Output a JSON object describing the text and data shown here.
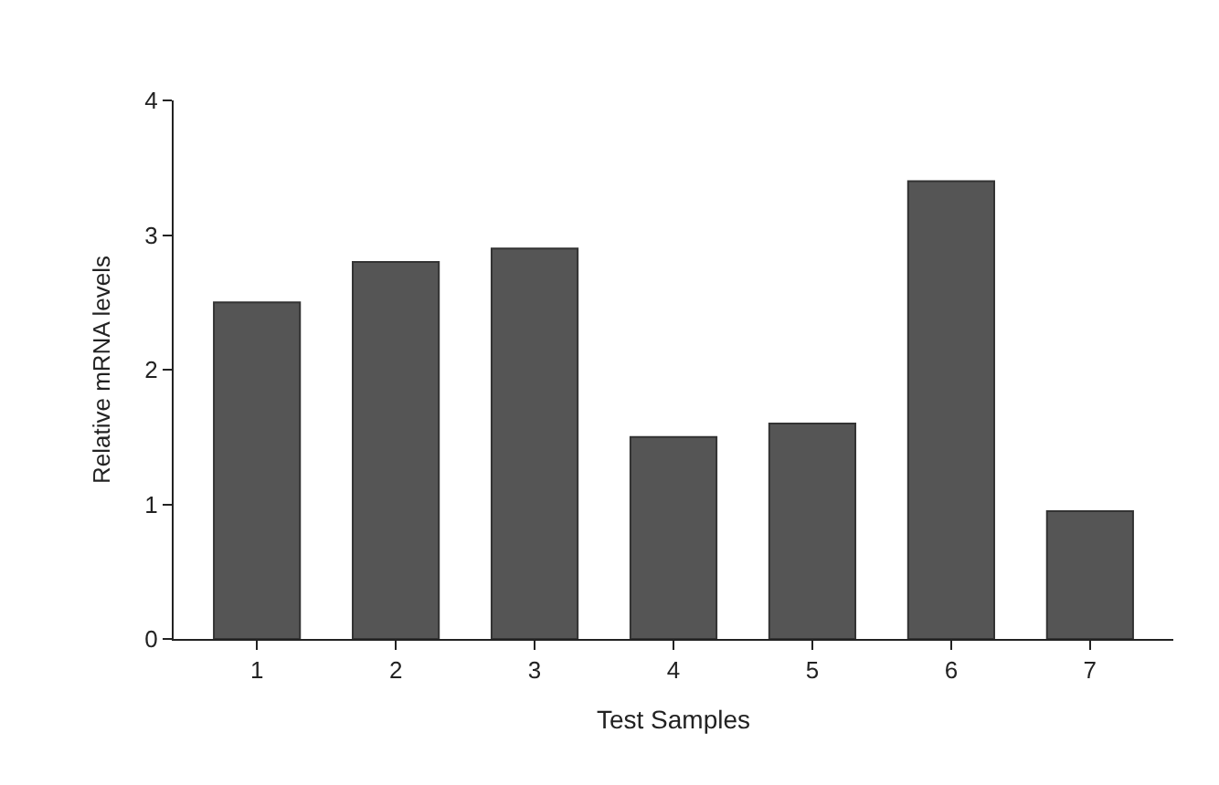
{
  "chart_data": {
    "type": "bar",
    "xlabel": "Test Samples",
    "ylabel": "Relative mRNA levels",
    "categories": [
      "1",
      "2",
      "3",
      "4",
      "5",
      "6",
      "7"
    ],
    "values": [
      2.5,
      2.8,
      2.9,
      1.5,
      1.6,
      3.4,
      0.95
    ],
    "color": "#555555",
    "ylim": [
      0,
      4
    ],
    "yticks": [
      0,
      1,
      2,
      3,
      4
    ]
  }
}
